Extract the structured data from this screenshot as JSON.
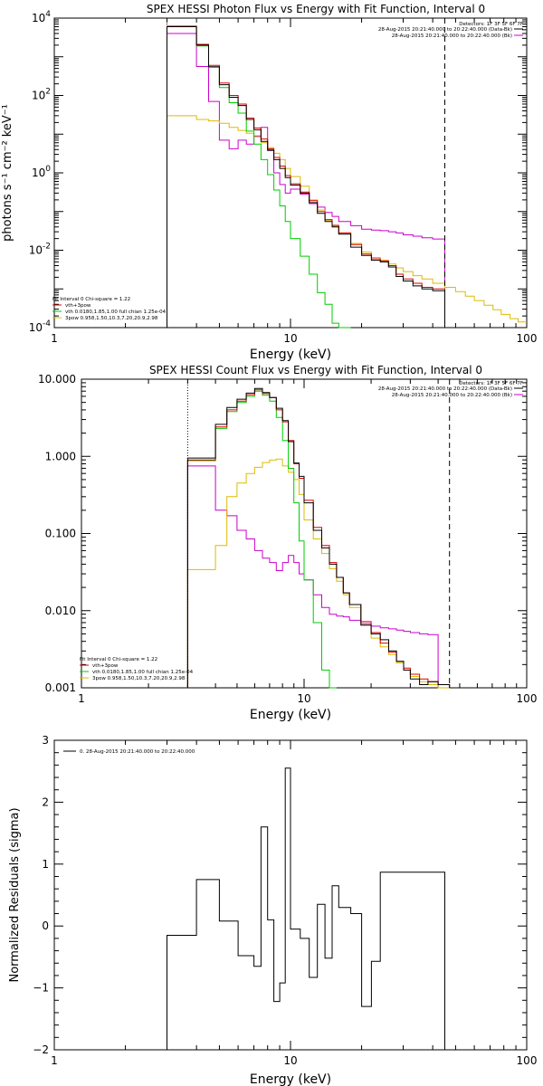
{
  "chart_data": [
    {
      "type": "line",
      "title": "SPEX HESSI Photon Flux vs Energy with Fit Function, Interval 0",
      "xlabel": "Energy (keV)",
      "ylabel": "photons s⁻¹ cm⁻² keV⁻¹",
      "xscale": "log",
      "yscale": "log",
      "xlim": [
        1,
        100
      ],
      "ylim": [
        0.0001,
        10000
      ],
      "x_ticks": [
        {
          "value": 1,
          "label": "1"
        },
        {
          "value": 10,
          "label": "10"
        },
        {
          "value": 100,
          "label": "100"
        }
      ],
      "y_ticks": [
        {
          "value": 0.0001,
          "base": "10",
          "exp": "-4"
        },
        {
          "value": 0.01,
          "base": "10",
          "exp": "-2"
        },
        {
          "value": 1,
          "base": "10",
          "exp": "0"
        },
        {
          "value": 100,
          "base": "10",
          "exp": "2"
        },
        {
          "value": 10000,
          "base": "10",
          "exp": "4"
        }
      ],
      "vlines": [
        {
          "x": 3,
          "style": "dotted"
        },
        {
          "x": 45,
          "style": "dashed"
        }
      ],
      "legend_top": {
        "header": "Detectors: 1F 3F 5F 6F 7F",
        "entries": [
          {
            "text": "28-Aug-2015 20:21:40.000 to 20:22:40.000 (Data-Bk)",
            "color": "#000000"
          },
          {
            "text": "28-Aug-2015 20:21:40.000 to 20:22:40.000 (Bk)",
            "color": "#cc00cc"
          }
        ]
      },
      "legend_fit": {
        "header": "Fit Interval 0   Chi-square = 1.22",
        "entries": [
          {
            "text": "vth+3pow",
            "color": "#dd0000"
          },
          {
            "text": "vth 0.0180,1.85,1.00  full chian 1.25e-04",
            "color": "#00cc00"
          },
          {
            "text": "3pow 0.958,1.50,10.3,7.20,20.9,2.98",
            "color": "#ddbb00"
          }
        ]
      },
      "edges": [
        3.0,
        3.5,
        4.0,
        4.5,
        5.0,
        5.5,
        6.0,
        6.5,
        7.0,
        7.5,
        8.0,
        8.5,
        9.0,
        9.5,
        10.0,
        11.0,
        12.0,
        13.0,
        14.0,
        15.0,
        16.0,
        18.0,
        20.0,
        22.0,
        24.0,
        26.0,
        28.0,
        30.0,
        33.0,
        36.0,
        40.0,
        45.0
      ],
      "series": [
        {
          "name": "Data-Bk",
          "color": "#000000",
          "values": [
            6000,
            6000,
            2000,
            550,
            190,
            90,
            55,
            24,
            13,
            6.5,
            3.8,
            2.2,
            1.3,
            0.75,
            0.48,
            0.3,
            0.17,
            0.09,
            0.055,
            0.04,
            0.026,
            0.012,
            0.0073,
            0.0055,
            0.005,
            0.0037,
            0.0021,
            0.0016,
            0.0012,
            0.001,
            0.0009
          ]
        },
        {
          "name": "vth+3pow",
          "color": "#dd0000",
          "values": [
            6200,
            6200,
            2100,
            600,
            210,
            100,
            60,
            26,
            14.5,
            7.5,
            4.2,
            2.5,
            1.5,
            0.85,
            0.52,
            0.32,
            0.19,
            0.1,
            0.062,
            0.044,
            0.028,
            0.014,
            0.008,
            0.006,
            0.0053,
            0.004,
            0.0024,
            0.0018,
            0.0014,
            0.0011,
            0.001
          ]
        },
        {
          "name": "vth",
          "color": "#00cc00",
          "values": [
            6000,
            6000,
            1900,
            540,
            160,
            65,
            35,
            12,
            5.5,
            2.2,
            0.9,
            0.36,
            0.14,
            0.055,
            0.02,
            0.007,
            0.0024,
            0.0008,
            0.0004,
            0.00013,
            5e-05
          ]
        },
        {
          "name": "3pow",
          "color": "#ddbb00",
          "values": [
            30,
            30,
            24,
            22,
            19,
            15,
            12.5,
            10.5,
            8.5,
            6,
            4.5,
            3.2,
            2.2,
            1.3,
            0.8,
            0.45,
            0.2,
            0.11,
            0.06,
            0.042,
            0.028,
            0.015,
            0.009,
            0.0065,
            0.0055,
            0.0044,
            0.0035,
            0.0028,
            0.0022,
            0.0018,
            0.0014
          ]
        },
        {
          "name": "Bk",
          "color": "#cc00cc",
          "values": [
            4000,
            4000,
            560,
            70,
            7,
            4.2,
            7,
            5.5,
            9,
            15,
            4,
            1,
            0.5,
            0.3,
            0.38,
            0.28,
            0.16,
            0.13,
            0.095,
            0.075,
            0.055,
            0.043,
            0.035,
            0.033,
            0.032,
            0.03,
            0.028,
            0.025,
            0.023,
            0.021,
            0.0195
          ]
        },
        {
          "name": "3pow-extension",
          "color": "#ddbb00",
          "edges": [
            45,
            50,
            55,
            60,
            66,
            72,
            78,
            85,
            92,
            100
          ],
          "values": [
            0.0011,
            0.00085,
            0.00065,
            0.0005,
            0.00038,
            0.00029,
            0.00022,
            0.00017,
            0.00014
          ]
        }
      ]
    },
    {
      "type": "line",
      "title": "SPEX HESSI Count Flux vs Energy with Fit Function, Interval 0",
      "xlabel": "Energy (keV)",
      "ylabel": "",
      "xscale": "log",
      "yscale": "log",
      "xlim": [
        1,
        100
      ],
      "ylim": [
        0.001,
        10
      ],
      "x_ticks": [
        {
          "value": 1,
          "label": "1"
        },
        {
          "value": 10,
          "label": "10"
        },
        {
          "value": 100,
          "label": "100"
        }
      ],
      "y_ticks": [
        {
          "value": 0.001,
          "label": "0.001"
        },
        {
          "value": 0.01,
          "label": "0.010"
        },
        {
          "value": 0.1,
          "label": "0.100"
        },
        {
          "value": 1,
          "label": "1.000"
        },
        {
          "value": 10,
          "label": "10.000"
        }
      ],
      "vlines": [
        {
          "x": 3,
          "style": "dotted"
        },
        {
          "x": 45,
          "style": "dashed"
        }
      ],
      "legend_top": {
        "header": "Detectors: 1F 3F 5F 6F 7F",
        "entries": [
          {
            "text": "28-Aug-2015 20:21:40.000 to 20:22:40.000 (Data-Bk)",
            "color": "#000000"
          },
          {
            "text": "28-Aug-2015 20:21:40.000 to 20:22:40.000 (Bk)",
            "color": "#cc00cc"
          }
        ]
      },
      "legend_fit": {
        "header": "Fit Interval 0   Chi-square = 1.22",
        "entries": [
          {
            "text": "vth+3pow",
            "color": "#dd0000"
          },
          {
            "text": "vth 0.0180,1.85,1.00  full chian 1.25e-04",
            "color": "#00cc00"
          },
          {
            "text": "3pow 0.958,1.50,10.3,7.20,20.9,2.98",
            "color": "#ddbb00"
          }
        ]
      },
      "edges": [
        3.0,
        3.5,
        4.0,
        4.5,
        5.0,
        5.5,
        6.0,
        6.5,
        7.0,
        7.5,
        8.0,
        8.5,
        9.0,
        9.5,
        10.0,
        11.0,
        12.0,
        13.0,
        14.0,
        15.0,
        16.0,
        18.0,
        20.0,
        22.0,
        24.0,
        26.0,
        28.0,
        30.0,
        33.0,
        36.0,
        40.0,
        45.0
      ],
      "series": [
        {
          "name": "Data-Bk",
          "color": "#000000",
          "values": [
            0.95,
            0.95,
            2.6,
            4.3,
            5.5,
            6.6,
            7.6,
            6.7,
            5.8,
            4.2,
            2.9,
            1.55,
            0.82,
            0.55,
            0.25,
            0.11,
            0.065,
            0.04,
            0.027,
            0.017,
            0.012,
            0.0065,
            0.005,
            0.0042,
            0.003,
            0.0022,
            0.0017,
            0.0013,
            0.0011,
            0.0012,
            0.0011
          ]
        },
        {
          "name": "vth+3pow",
          "color": "#dd0000",
          "values": [
            0.9,
            0.9,
            2.4,
            4.0,
            5.2,
            6.3,
            7.3,
            6.5,
            5.8,
            4.0,
            2.8,
            1.6,
            0.8,
            0.52,
            0.27,
            0.12,
            0.07,
            0.042,
            0.027,
            0.017,
            0.012,
            0.0072,
            0.0052,
            0.0038,
            0.0029,
            0.0022,
            0.0018,
            0.0015,
            0.0013,
            0.0012,
            0.0011
          ]
        },
        {
          "name": "vth",
          "color": "#00cc00",
          "values": [
            0.88,
            0.88,
            2.3,
            3.8,
            5.0,
            6.0,
            7.0,
            6.2,
            5.2,
            3.2,
            1.6,
            0.7,
            0.25,
            0.08,
            0.025,
            0.007,
            0.0017,
            0.0004
          ]
        },
        {
          "name": "3pow",
          "color": "#ddbb00",
          "values": [
            0.034,
            0.034,
            0.07,
            0.3,
            0.45,
            0.6,
            0.72,
            0.83,
            0.9,
            0.92,
            0.75,
            0.62,
            0.5,
            0.32,
            0.15,
            0.085,
            0.055,
            0.035,
            0.024,
            0.016,
            0.011,
            0.0065,
            0.0044,
            0.0034,
            0.0027,
            0.0021,
            0.0017,
            0.0014,
            0.0012,
            0.0011,
            0.001
          ]
        },
        {
          "name": "Bk",
          "color": "#cc00cc",
          "values": [
            0.75,
            0.75,
            0.2,
            0.17,
            0.11,
            0.085,
            0.06,
            0.048,
            0.042,
            0.033,
            0.042,
            0.052,
            0.042,
            0.03,
            0.025,
            0.016,
            0.011,
            0.009,
            0.0085,
            0.0083,
            0.0075,
            0.0068,
            0.0063,
            0.006,
            0.0058,
            0.0056,
            0.0054,
            0.0052,
            0.005,
            0.0049
          ]
        }
      ]
    },
    {
      "type": "line",
      "title": "",
      "xlabel": "Energy (keV)",
      "ylabel": "Normalized Residuals (sigma)",
      "xscale": "log",
      "yscale": "linear",
      "xlim": [
        1,
        100
      ],
      "ylim": [
        -2,
        3
      ],
      "x_ticks": [
        {
          "value": 1,
          "label": "1"
        },
        {
          "value": 10,
          "label": "10"
        },
        {
          "value": 100,
          "label": "100"
        }
      ],
      "y_ticks": [
        {
          "value": -2,
          "label": "−2"
        },
        {
          "value": -1,
          "label": "−1"
        },
        {
          "value": 0,
          "label": "0"
        },
        {
          "value": 1,
          "label": "1"
        },
        {
          "value": 2,
          "label": "2"
        },
        {
          "value": 3,
          "label": "3"
        }
      ],
      "legend_top": {
        "entries": [
          {
            "text": "0. 28-Aug-2015 20:21:40.000 to 20:22:40.000",
            "color": "#000000"
          }
        ]
      },
      "edges": [
        3.0,
        3.5,
        4.0,
        4.5,
        5.0,
        5.5,
        6.0,
        6.5,
        7.0,
        7.5,
        8.0,
        8.5,
        9.0,
        9.5,
        10.0,
        11.0,
        12.0,
        13.0,
        14.0,
        15.0,
        16.0,
        18.0,
        20.0,
        22.0,
        24.0,
        26.0,
        28.0,
        30.0,
        33.0,
        36.0,
        40.0,
        45.0
      ],
      "series": [
        {
          "name": "0. 28-Aug-2015 20:21:40.000 to 20:22:40.000",
          "color": "#000000",
          "values": [
            -0.15,
            -0.15,
            0.75,
            0.75,
            0.08,
            0.08,
            -0.48,
            -0.48,
            -0.65,
            1.6,
            0.1,
            -1.22,
            -0.92,
            2.55,
            -0.05,
            -0.2,
            -0.83,
            0.35,
            -0.52,
            0.65,
            0.3,
            0.2,
            -1.3,
            -0.57,
            0.87,
            0.87,
            0.87,
            0.87,
            0.87,
            0.87,
            0.87
          ]
        }
      ]
    }
  ]
}
